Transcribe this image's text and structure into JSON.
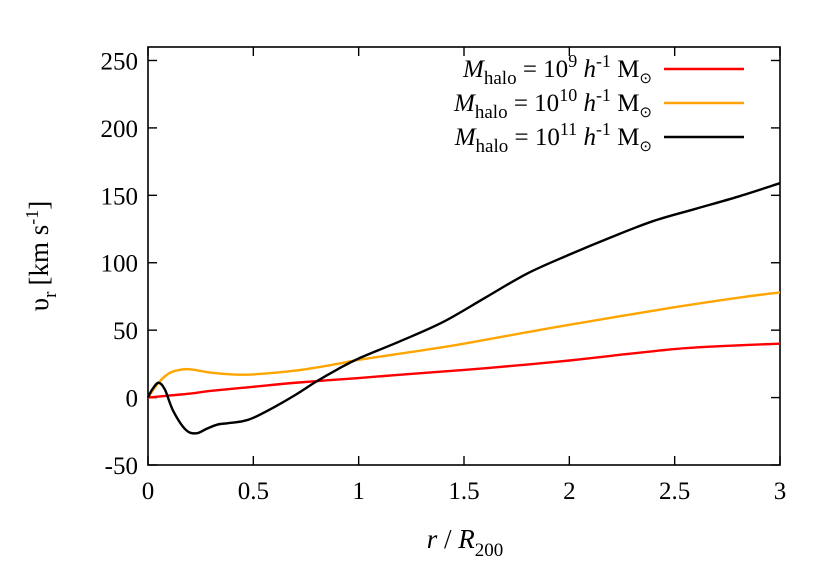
{
  "chart_data": {
    "type": "line",
    "xlabel": {
      "var": "r",
      "sep": " / ",
      "denom": "R",
      "denom_sub": "200"
    },
    "ylabel": {
      "sym": "υ",
      "sub": "r",
      "unit": "[km s",
      "unit_sup": "-1",
      "unit_close": "]"
    },
    "xlim": [
      0,
      3
    ],
    "ylim": [
      -50,
      260
    ],
    "x_ticks": [
      "0",
      "0.5",
      "1",
      "1.5",
      "2",
      "2.5",
      "3"
    ],
    "y_ticks": [
      "-50",
      "0",
      "50",
      "100",
      "150",
      "200",
      "250"
    ],
    "x_tick_values": [
      0,
      0.5,
      1,
      1.5,
      2,
      2.5,
      3
    ],
    "y_tick_values": [
      -50,
      0,
      50,
      100,
      150,
      200,
      250
    ],
    "grid": false,
    "legend_position": "top-right",
    "series": [
      {
        "name": "M_halo = 10^9 h^-1 M_sun",
        "label": {
          "M": "M",
          "sub": "halo",
          "eq": " = 10",
          "exp": "9",
          "h": " h",
          "hexp": "-1",
          "unit": " M",
          "sun": "⊙"
        },
        "color": "#ff0000",
        "x": [
          0,
          0.1,
          0.2,
          0.3,
          0.5,
          0.7,
          1.0,
          1.2,
          1.5,
          1.8,
          2.0,
          2.2,
          2.5,
          2.7,
          3.0
        ],
        "y": [
          0,
          1.5,
          3,
          5,
          8,
          11,
          14.5,
          17,
          20.5,
          24.5,
          27.5,
          31,
          36,
          38,
          40
        ]
      },
      {
        "name": "M_halo = 10^10 h^-1 M_sun",
        "label": {
          "M": "M",
          "sub": "halo",
          "eq": " = 10",
          "exp": "10",
          "h": " h",
          "hexp": "-1",
          "unit": " M",
          "sun": "⊙"
        },
        "color": "#ffa500",
        "x": [
          0,
          0.05,
          0.1,
          0.15,
          0.2,
          0.3,
          0.4,
          0.5,
          0.7,
          0.9,
          1.0,
          1.3,
          1.5,
          1.8,
          2.0,
          2.5,
          2.8,
          3.0
        ],
        "y": [
          0,
          11,
          18,
          20.5,
          21,
          18.5,
          17.2,
          17.2,
          20,
          25,
          28,
          35,
          40,
          48.5,
          54,
          67,
          74,
          78
        ]
      },
      {
        "name": "M_halo = 10^11 h^-1 M_sun",
        "label": {
          "M": "M",
          "sub": "halo",
          "eq": " = 10",
          "exp": "11",
          "h": " h",
          "hexp": "-1",
          "unit": " M",
          "sun": "⊙"
        },
        "color": "#000000",
        "x": [
          0,
          0.02,
          0.05,
          0.08,
          0.12,
          0.18,
          0.23,
          0.28,
          0.33,
          0.38,
          0.45,
          0.5,
          0.6,
          0.7,
          0.8,
          0.9,
          1.0,
          1.2,
          1.4,
          1.6,
          1.8,
          2.0,
          2.2,
          2.4,
          2.6,
          2.8,
          3.0
        ],
        "y": [
          0,
          6,
          11,
          6,
          -10,
          -24,
          -26.5,
          -23,
          -20,
          -19,
          -17.5,
          -15,
          -7,
          2,
          12,
          21,
          29,
          42,
          56,
          74,
          92,
          106,
          119,
          131,
          140,
          149,
          159
        ]
      }
    ]
  }
}
